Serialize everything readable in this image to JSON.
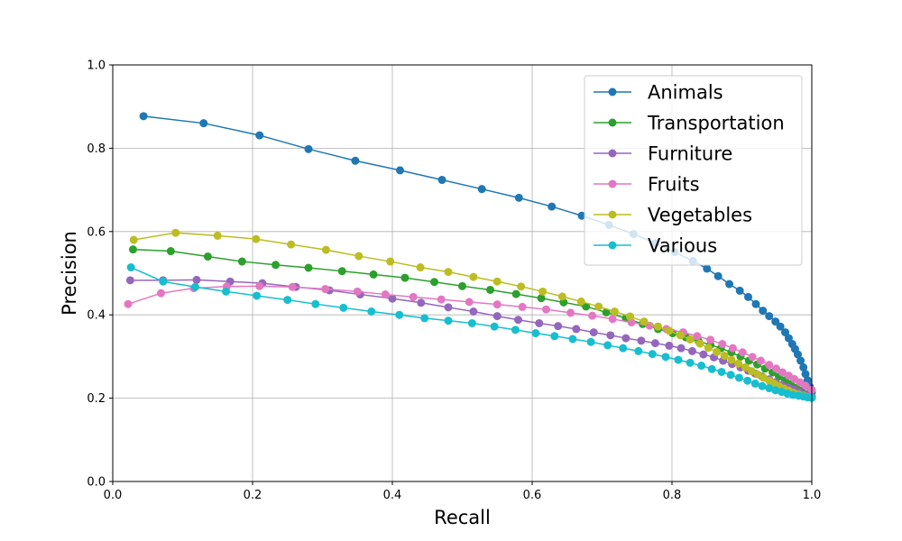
{
  "chart_data": {
    "type": "line",
    "title": "",
    "xlabel": "Recall",
    "ylabel": "Precision",
    "xlim": [
      0.0,
      1.0
    ],
    "ylim": [
      0.0,
      1.0
    ],
    "xticks": [
      "0.0",
      "0.2",
      "0.4",
      "0.6",
      "0.8",
      "1.0"
    ],
    "yticks": [
      "0.0",
      "0.2",
      "0.4",
      "0.6",
      "0.8",
      "1.0"
    ],
    "grid": true,
    "legend_position": "upper-right",
    "series": [
      {
        "name": "Animals",
        "color": "#1f77b4",
        "x": [
          0.044,
          0.13,
          0.21,
          0.28,
          0.347,
          0.411,
          0.471,
          0.528,
          0.581,
          0.628,
          0.671,
          0.71,
          0.745,
          0.776,
          0.804,
          0.83,
          0.85,
          0.866,
          0.882,
          0.897,
          0.909,
          0.92,
          0.93,
          0.939,
          0.948,
          0.955,
          0.962,
          0.967,
          0.972,
          0.976,
          0.98,
          0.984,
          0.988,
          0.991,
          0.994,
          0.997,
          1.0
        ],
        "y": [
          0.877,
          0.86,
          0.831,
          0.798,
          0.77,
          0.747,
          0.724,
          0.702,
          0.681,
          0.66,
          0.638,
          0.616,
          0.594,
          0.572,
          0.551,
          0.529,
          0.511,
          0.493,
          0.474,
          0.458,
          0.443,
          0.426,
          0.41,
          0.397,
          0.384,
          0.372,
          0.358,
          0.344,
          0.33,
          0.318,
          0.305,
          0.29,
          0.274,
          0.258,
          0.243,
          0.228,
          0.214
        ]
      },
      {
        "name": "Transportation",
        "color": "#2ca02c",
        "x": [
          0.029,
          0.083,
          0.136,
          0.185,
          0.233,
          0.28,
          0.328,
          0.373,
          0.418,
          0.46,
          0.5,
          0.54,
          0.577,
          0.613,
          0.645,
          0.677,
          0.706,
          0.734,
          0.758,
          0.78,
          0.801,
          0.82,
          0.838,
          0.855,
          0.87,
          0.885,
          0.898,
          0.91,
          0.922,
          0.933,
          0.944,
          0.953,
          0.962,
          0.97,
          0.978,
          0.985,
          0.992,
          1.0
        ],
        "y": [
          0.557,
          0.553,
          0.54,
          0.528,
          0.52,
          0.513,
          0.505,
          0.497,
          0.489,
          0.479,
          0.469,
          0.46,
          0.45,
          0.44,
          0.43,
          0.42,
          0.406,
          0.392,
          0.378,
          0.366,
          0.356,
          0.346,
          0.337,
          0.328,
          0.32,
          0.31,
          0.3,
          0.29,
          0.281,
          0.271,
          0.262,
          0.252,
          0.243,
          0.234,
          0.225,
          0.218,
          0.21,
          0.203
        ]
      },
      {
        "name": "Furniture",
        "color": "#9467bd",
        "x": [
          0.025,
          0.072,
          0.12,
          0.168,
          0.214,
          0.262,
          0.31,
          0.354,
          0.4,
          0.441,
          0.48,
          0.516,
          0.55,
          0.58,
          0.61,
          0.637,
          0.663,
          0.688,
          0.712,
          0.734,
          0.756,
          0.776,
          0.796,
          0.813,
          0.829,
          0.845,
          0.86,
          0.873,
          0.886,
          0.898,
          0.909,
          0.919,
          0.929,
          0.939,
          0.948,
          0.957,
          0.966,
          0.974,
          0.982,
          0.991,
          1.0
        ],
        "y": [
          0.483,
          0.483,
          0.484,
          0.48,
          0.476,
          0.467,
          0.459,
          0.449,
          0.439,
          0.429,
          0.418,
          0.408,
          0.397,
          0.388,
          0.38,
          0.373,
          0.366,
          0.358,
          0.351,
          0.344,
          0.338,
          0.332,
          0.326,
          0.32,
          0.313,
          0.305,
          0.298,
          0.29,
          0.282,
          0.274,
          0.266,
          0.259,
          0.252,
          0.245,
          0.238,
          0.232,
          0.226,
          0.22,
          0.215,
          0.209,
          0.204
        ]
      },
      {
        "name": "Fruits",
        "color": "#e377c2",
        "x": [
          0.022,
          0.069,
          0.116,
          0.163,
          0.21,
          0.257,
          0.304,
          0.35,
          0.39,
          0.43,
          0.47,
          0.51,
          0.55,
          0.586,
          0.62,
          0.655,
          0.686,
          0.715,
          0.742,
          0.768,
          0.792,
          0.816,
          0.836,
          0.855,
          0.872,
          0.887,
          0.901,
          0.915,
          0.927,
          0.939,
          0.949,
          0.958,
          0.967,
          0.975,
          0.983,
          0.991,
          1.0
        ],
        "y": [
          0.426,
          0.452,
          0.464,
          0.468,
          0.469,
          0.467,
          0.462,
          0.456,
          0.449,
          0.443,
          0.437,
          0.431,
          0.425,
          0.419,
          0.413,
          0.405,
          0.398,
          0.39,
          0.382,
          0.374,
          0.366,
          0.358,
          0.349,
          0.34,
          0.33,
          0.32,
          0.31,
          0.299,
          0.29,
          0.28,
          0.271,
          0.262,
          0.254,
          0.246,
          0.238,
          0.23,
          0.22
        ]
      },
      {
        "name": "Vegetables",
        "color": "#bcbd22",
        "x": [
          0.03,
          0.09,
          0.15,
          0.205,
          0.255,
          0.305,
          0.352,
          0.397,
          0.44,
          0.48,
          0.516,
          0.55,
          0.584,
          0.615,
          0.643,
          0.67,
          0.695,
          0.718,
          0.74,
          0.76,
          0.78,
          0.796,
          0.812,
          0.826,
          0.84,
          0.852,
          0.864,
          0.875,
          0.885,
          0.895,
          0.905,
          0.914,
          0.923,
          0.931,
          0.939,
          0.946,
          0.953,
          0.96,
          0.967,
          0.974,
          0.981,
          0.988,
          0.994,
          1.0
        ],
        "y": [
          0.58,
          0.597,
          0.59,
          0.582,
          0.569,
          0.556,
          0.541,
          0.528,
          0.514,
          0.503,
          0.491,
          0.48,
          0.468,
          0.456,
          0.444,
          0.432,
          0.42,
          0.408,
          0.396,
          0.384,
          0.372,
          0.362,
          0.351,
          0.341,
          0.331,
          0.321,
          0.311,
          0.302,
          0.292,
          0.283,
          0.274,
          0.265,
          0.257,
          0.249,
          0.242,
          0.235,
          0.229,
          0.223,
          0.218,
          0.213,
          0.209,
          0.206,
          0.203,
          0.201
        ]
      },
      {
        "name": "Various",
        "color": "#17becf",
        "x": [
          0.026,
          0.072,
          0.118,
          0.162,
          0.206,
          0.25,
          0.29,
          0.33,
          0.37,
          0.41,
          0.446,
          0.48,
          0.514,
          0.546,
          0.576,
          0.605,
          0.632,
          0.658,
          0.684,
          0.708,
          0.73,
          0.752,
          0.772,
          0.791,
          0.809,
          0.826,
          0.842,
          0.857,
          0.871,
          0.884,
          0.896,
          0.908,
          0.919,
          0.929,
          0.939,
          0.948,
          0.957,
          0.965,
          0.973,
          0.981,
          0.988,
          0.994,
          1.0
        ],
        "y": [
          0.514,
          0.48,
          0.467,
          0.456,
          0.446,
          0.436,
          0.426,
          0.417,
          0.408,
          0.4,
          0.392,
          0.386,
          0.38,
          0.372,
          0.364,
          0.356,
          0.349,
          0.342,
          0.335,
          0.327,
          0.32,
          0.313,
          0.306,
          0.299,
          0.292,
          0.285,
          0.278,
          0.27,
          0.263,
          0.256,
          0.249,
          0.242,
          0.235,
          0.229,
          0.224,
          0.219,
          0.215,
          0.211,
          0.208,
          0.206,
          0.204,
          0.202,
          0.201
        ]
      }
    ]
  }
}
